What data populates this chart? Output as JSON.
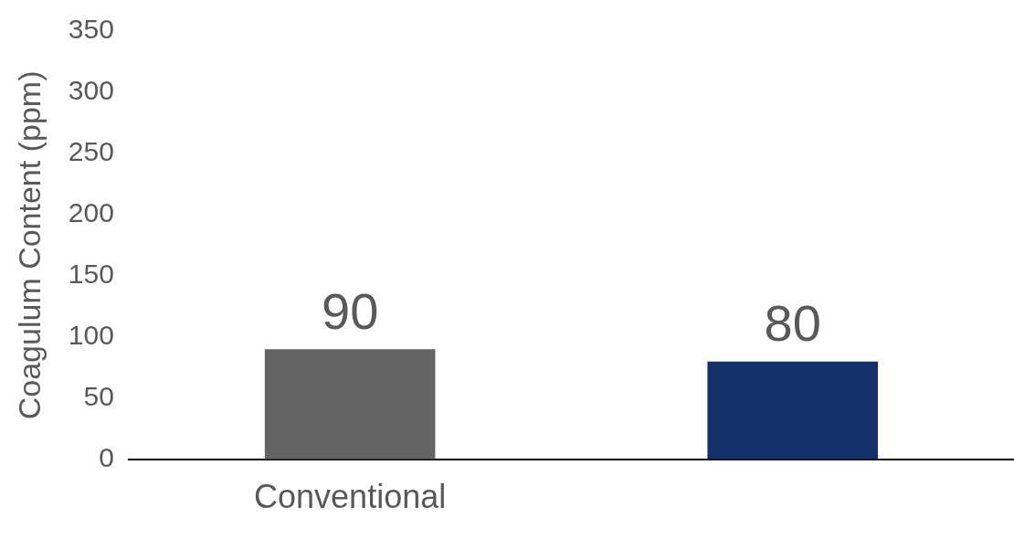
{
  "chart_data": {
    "type": "bar",
    "ylabel": "Coagulum Content (ppm)",
    "categories": [
      "Conventional",
      null
    ],
    "values": [
      90,
      80
    ],
    "colors": [
      "#646464",
      "#15316b"
    ],
    "ylim": [
      0,
      350
    ],
    "yticks": [
      0,
      50,
      100,
      150,
      200,
      250,
      300,
      350
    ],
    "grid": false,
    "legend": false,
    "data_labels": true
  }
}
